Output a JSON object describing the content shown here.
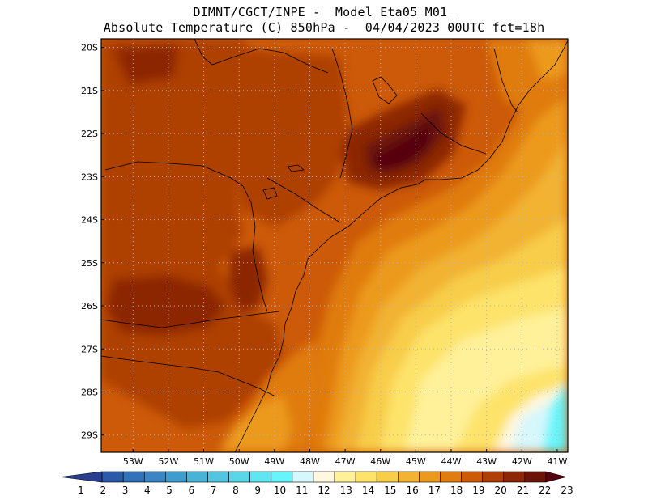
{
  "header": {
    "line1": "DIMNT/CGCT/INPE -  Model Eta05_M01_",
    "line2": "Absolute Temperature (C) 850hPa -  04/04/2023 00UTC fct=18h"
  },
  "map": {
    "lon_range": [
      -53.9,
      -40.7
    ],
    "lat_range": [
      -29.4,
      -19.8
    ],
    "lat_ticks": [
      {
        "label": "20S",
        "value": -20
      },
      {
        "label": "21S",
        "value": -21
      },
      {
        "label": "22S",
        "value": -22
      },
      {
        "label": "23S",
        "value": -23
      },
      {
        "label": "24S",
        "value": -24
      },
      {
        "label": "25S",
        "value": -25
      },
      {
        "label": "26S",
        "value": -26
      },
      {
        "label": "27S",
        "value": -27
      },
      {
        "label": "28S",
        "value": -28
      },
      {
        "label": "29S",
        "value": -29
      }
    ],
    "lon_ticks": [
      {
        "label": "53W",
        "value": -53
      },
      {
        "label": "52W",
        "value": -52
      },
      {
        "label": "51W",
        "value": -51
      },
      {
        "label": "50W",
        "value": -50
      },
      {
        "label": "49W",
        "value": -49
      },
      {
        "label": "48W",
        "value": -48
      },
      {
        "label": "47W",
        "value": -47
      },
      {
        "label": "46W",
        "value": -46
      },
      {
        "label": "45W",
        "value": -45
      },
      {
        "label": "44W",
        "value": -44
      },
      {
        "label": "43W",
        "value": -43
      },
      {
        "label": "42W",
        "value": -42
      },
      {
        "label": "41W",
        "value": -41
      }
    ],
    "grid": "dotted"
  },
  "colorbar": {
    "labels": [
      "1",
      "2",
      "3",
      "4",
      "5",
      "6",
      "7",
      "8",
      "9",
      "10",
      "11",
      "12",
      "13",
      "14",
      "15",
      "16",
      "17",
      "18",
      "19",
      "20",
      "21",
      "22",
      "23"
    ],
    "colors": [
      "#2a3f8f",
      "#2a5aa8",
      "#3272b8",
      "#3a86c4",
      "#3e9ccf",
      "#47b3d9",
      "#52c6e0",
      "#5bd6e8",
      "#5fe6f1",
      "#66f5fb",
      "#d6f7fb",
      "#fff8e0",
      "#fff19a",
      "#fde36a",
      "#f8cd48",
      "#f2b232",
      "#ec9a1e",
      "#e07c10",
      "#cc5a08",
      "#ae3f06",
      "#8c2606",
      "#6b1308",
      "#560010"
    ]
  }
}
